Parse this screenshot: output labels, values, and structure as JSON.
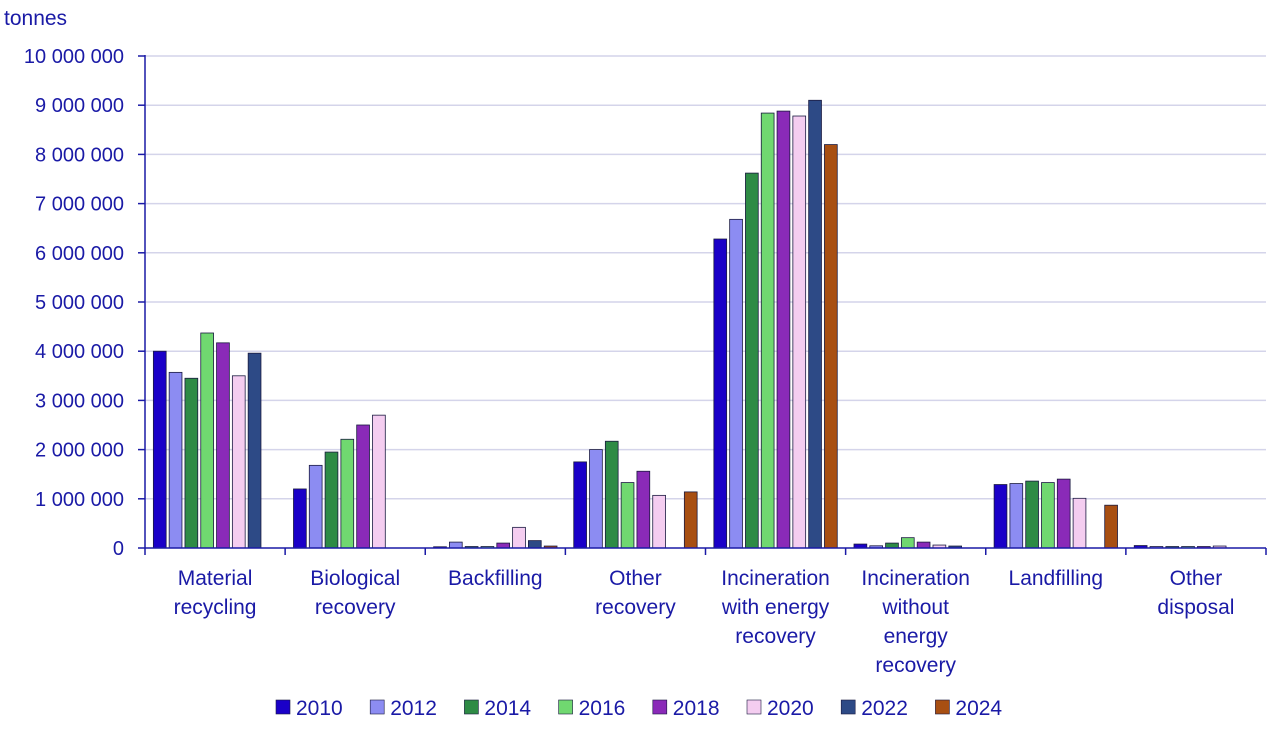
{
  "chart_data": {
    "type": "bar",
    "ylabel": "tonnes",
    "ylim": [
      0,
      10000000
    ],
    "yticks": [
      {
        "value": 0,
        "label": "0"
      },
      {
        "value": 1000000,
        "label": "1 000 000"
      },
      {
        "value": 2000000,
        "label": "2 000 000"
      },
      {
        "value": 3000000,
        "label": "3 000 000"
      },
      {
        "value": 4000000,
        "label": "4 000 000"
      },
      {
        "value": 5000000,
        "label": "5 000 000"
      },
      {
        "value": 6000000,
        "label": "6 000 000"
      },
      {
        "value": 7000000,
        "label": "7 000 000"
      },
      {
        "value": 8000000,
        "label": "8 000 000"
      },
      {
        "value": 9000000,
        "label": "9 000 000"
      },
      {
        "value": 10000000,
        "label": "10 000 000"
      }
    ],
    "grid": true,
    "legend_position": "bottom",
    "categories": [
      {
        "name": "Material recycling",
        "lines": [
          "Material",
          "recycling"
        ]
      },
      {
        "name": "Biological recovery",
        "lines": [
          "Biological",
          "recovery"
        ]
      },
      {
        "name": "Backfilling",
        "lines": [
          "Backfilling"
        ]
      },
      {
        "name": "Other recovery",
        "lines": [
          "Other",
          "recovery"
        ]
      },
      {
        "name": "Incineration with energy recovery",
        "lines": [
          "Incineration",
          "with energy",
          "recovery"
        ]
      },
      {
        "name": "Incineration without energy recovery",
        "lines": [
          "Incineration",
          "without",
          "energy",
          "recovery"
        ]
      },
      {
        "name": "Landfilling",
        "lines": [
          "Landfilling"
        ]
      },
      {
        "name": "Other disposal",
        "lines": [
          "Other",
          "disposal"
        ]
      }
    ],
    "series": [
      {
        "name": "2010",
        "color": "#1a00c8",
        "values": [
          4000000,
          1200000,
          25000,
          1750000,
          6280000,
          80000,
          1290000,
          50000
        ]
      },
      {
        "name": "2012",
        "color": "#8c8cf2",
        "values": [
          3570000,
          1680000,
          120000,
          2000000,
          6680000,
          45000,
          1310000,
          30000
        ]
      },
      {
        "name": "2014",
        "color": "#2e8b45",
        "values": [
          3450000,
          1950000,
          30000,
          2170000,
          7620000,
          100000,
          1360000,
          30000
        ]
      },
      {
        "name": "2016",
        "color": "#70d870",
        "values": [
          4370000,
          2210000,
          30000,
          1330000,
          8840000,
          210000,
          1330000,
          30000
        ]
      },
      {
        "name": "2018",
        "color": "#8a2ab8",
        "values": [
          4170000,
          2500000,
          100000,
          1560000,
          8880000,
          120000,
          1400000,
          30000
        ]
      },
      {
        "name": "2020",
        "color": "#f4cdf0",
        "values": [
          3500000,
          2700000,
          420000,
          1070000,
          8780000,
          60000,
          1010000,
          40000
        ]
      },
      {
        "name": "2022",
        "color": "#2d4a86",
        "values": [
          3960000,
          null,
          150000,
          null,
          9100000,
          40000,
          null,
          null
        ]
      },
      {
        "name": "2024",
        "color": "#a84f12",
        "values": [
          null,
          null,
          40000,
          1140000,
          8200000,
          null,
          870000,
          null
        ]
      }
    ]
  }
}
